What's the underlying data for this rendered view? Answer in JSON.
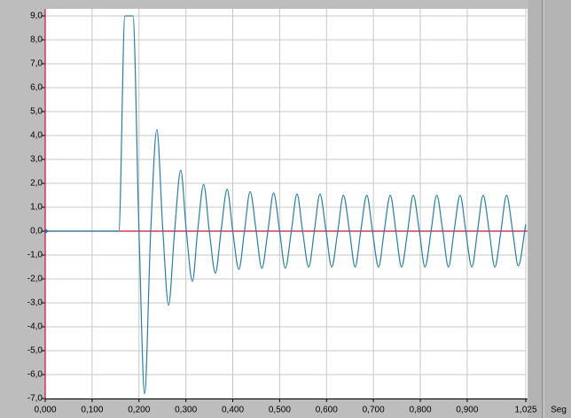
{
  "chart_data": {
    "type": "line",
    "x_label": "Seg",
    "x": [
      0,
      0.157,
      0.17,
      0.187,
      0.2,
      0.212,
      0.225,
      0.238,
      0.251,
      0.263,
      0.276,
      0.289,
      0.301,
      0.314,
      0.325,
      0.338,
      0.35,
      0.363,
      0.375,
      0.388,
      0.4,
      0.413,
      0.425,
      0.437,
      0.45,
      0.462,
      0.475,
      0.487,
      0.5,
      0.512,
      0.525,
      0.537,
      0.549,
      0.562,
      0.574,
      0.586,
      0.599,
      0.611,
      0.624,
      0.636,
      0.649,
      0.661,
      0.673,
      0.686,
      0.698,
      0.711,
      0.723,
      0.736,
      0.748,
      0.76,
      0.773,
      0.785,
      0.798,
      0.81,
      0.823,
      0.835,
      0.848,
      0.86,
      0.872,
      0.885,
      0.897,
      0.91,
      0.922,
      0.934,
      0.947,
      0.959,
      0.972,
      0.984,
      0.997,
      1.009,
      1.025
    ],
    "values": [
      0,
      0,
      9,
      9,
      0,
      -6.8,
      0,
      4.25,
      0,
      -3.1,
      0,
      2.55,
      0,
      -2.1,
      0,
      1.95,
      0,
      -1.75,
      0,
      1.75,
      0,
      -1.6,
      0,
      1.65,
      0,
      -1.55,
      0,
      1.6,
      0,
      -1.55,
      0,
      1.55,
      0,
      -1.5,
      0,
      1.55,
      0,
      -1.5,
      0,
      1.5,
      0,
      -1.5,
      0,
      1.5,
      0,
      -1.5,
      0,
      1.5,
      0,
      -1.5,
      0,
      1.5,
      0,
      -1.5,
      0,
      1.5,
      0,
      -1.5,
      0,
      1.5,
      0,
      -1.5,
      0,
      1.5,
      0,
      -1.5,
      0,
      1.5,
      0,
      -1.45,
      0.3
    ],
    "color": "#2b7f9e",
    "axis_color": "#d0103a",
    "xlim": [
      0,
      1.025
    ],
    "xticks": [
      {
        "value": 0,
        "label": "0,000"
      },
      {
        "value": 0.1,
        "label": "0,100"
      },
      {
        "value": 0.2,
        "label": "0,200"
      },
      {
        "value": 0.3,
        "label": "0,300"
      },
      {
        "value": 0.4,
        "label": "0,400"
      },
      {
        "value": 0.5,
        "label": "0,500"
      },
      {
        "value": 0.6,
        "label": "0,600"
      },
      {
        "value": 0.7,
        "label": "0,700"
      },
      {
        "value": 0.8,
        "label": "0,800"
      },
      {
        "value": 0.9,
        "label": "0,900"
      },
      {
        "value": 1.025,
        "label": "1,025"
      }
    ],
    "ylim": [
      -7,
      9
    ],
    "yticks": [
      {
        "value": 9,
        "label": "9,0"
      },
      {
        "value": 8,
        "label": "8,0"
      },
      {
        "value": 7,
        "label": "7,0"
      },
      {
        "value": 6,
        "label": "6,0"
      },
      {
        "value": 5,
        "label": "5,0"
      },
      {
        "value": 4,
        "label": "4,0"
      },
      {
        "value": 3,
        "label": "3,0"
      },
      {
        "value": 2,
        "label": "2,0"
      },
      {
        "value": 1,
        "label": "1,0"
      },
      {
        "value": 0,
        "label": "0,0"
      },
      {
        "value": -1,
        "label": "-1,0"
      },
      {
        "value": -2,
        "label": "-2,0"
      },
      {
        "value": -3,
        "label": "-3,0"
      },
      {
        "value": -4,
        "label": "-4,0"
      },
      {
        "value": -5,
        "label": "-5,0"
      },
      {
        "value": -6,
        "label": "-6,0"
      },
      {
        "value": -7,
        "label": "-7,0"
      }
    ],
    "grid": true
  }
}
